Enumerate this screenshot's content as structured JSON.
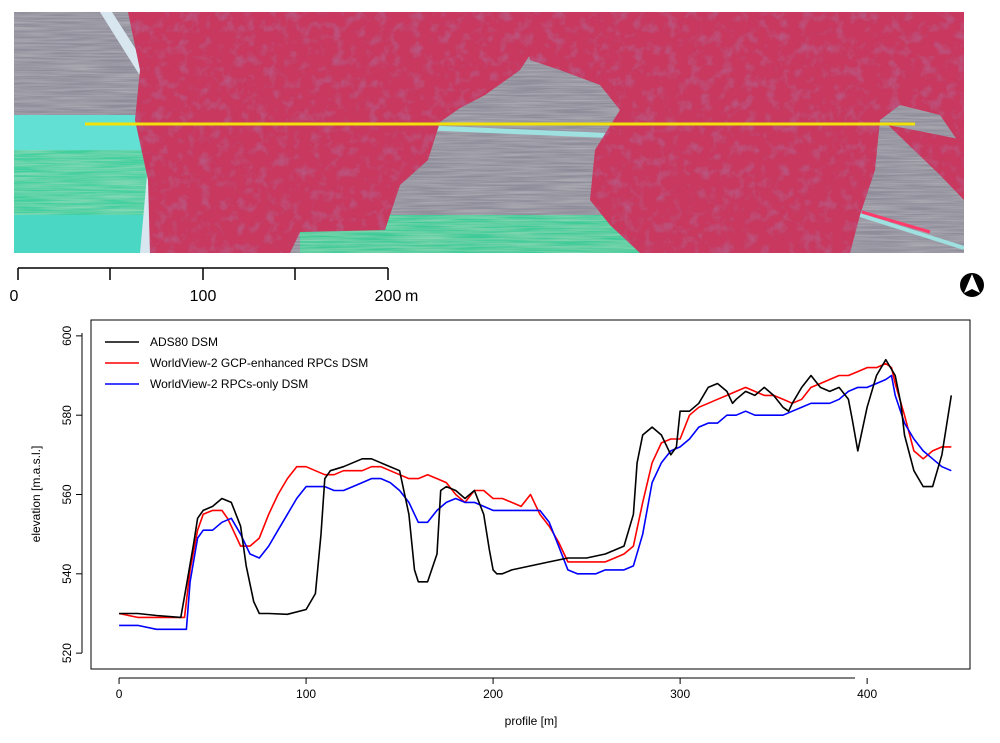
{
  "colors": {
    "forest": "#c8375f",
    "forest_dark": "#7d1836",
    "field_cyan": "#5fe2d6",
    "field_green": "#2ec89a",
    "field_gray": "#9a8c95",
    "profile_line": "#f2e20a",
    "ads80": "#000000",
    "wv2_gcp": "#ff0000",
    "wv2_rpc": "#0000ff"
  },
  "icons": {
    "north_arrow": "north-arrow-icon"
  },
  "scalebar": {
    "labels": [
      "0",
      "100",
      "200"
    ],
    "unit": "m"
  },
  "chart_data": {
    "type": "line",
    "xlabel": "profile [m]",
    "ylabel": "elevation [m.a.s.l.]",
    "xlim": [
      -15,
      455
    ],
    "ylim": [
      516,
      604
    ],
    "xticks": [
      0,
      100,
      200,
      300,
      400
    ],
    "yticks": [
      520,
      540,
      560,
      580,
      600
    ],
    "legend_position": "top-left",
    "series": [
      {
        "name": "ADS80 DSM",
        "color": "#000000",
        "x": [
          0,
          10,
          20,
          33,
          36,
          40,
          42,
          45,
          50,
          55,
          60,
          65,
          68,
          72,
          75,
          80,
          90,
          100,
          105,
          108,
          110,
          113,
          120,
          130,
          135,
          140,
          145,
          150,
          155,
          158,
          160,
          165,
          170,
          172,
          175,
          180,
          185,
          190,
          195,
          198,
          200,
          202,
          205,
          210,
          220,
          230,
          240,
          250,
          260,
          270,
          275,
          277,
          280,
          285,
          290,
          295,
          298,
          300,
          302,
          305,
          310,
          315,
          320,
          325,
          328,
          330,
          335,
          340,
          345,
          350,
          355,
          358,
          360,
          365,
          370,
          375,
          380,
          385,
          390,
          392,
          395,
          400,
          405,
          410,
          415,
          418,
          420,
          425,
          430,
          435,
          440,
          445
        ],
        "y": [
          530,
          530,
          529.5,
          529,
          537,
          548,
          554,
          556,
          557,
          559,
          558,
          552,
          542,
          533,
          530,
          530,
          529.8,
          531,
          535,
          550,
          564,
          566,
          567,
          569,
          569,
          568,
          567,
          566,
          555,
          541,
          538,
          538,
          545,
          561,
          562,
          561,
          559,
          561,
          555,
          546,
          541,
          540,
          540,
          541,
          542,
          543,
          544,
          544,
          545,
          547,
          555,
          568,
          575,
          577,
          575,
          570,
          572,
          581,
          581,
          581,
          583,
          587,
          588,
          586,
          583,
          584,
          586,
          585,
          587,
          585,
          582,
          581,
          583,
          587,
          590,
          587,
          586,
          587,
          584,
          579,
          571,
          582,
          590,
          594,
          590,
          583,
          575,
          566,
          562,
          562,
          570,
          585
        ]
      },
      {
        "name": "WorldView-2 GCP-enhanced RPCs DSM",
        "color": "#ff0000",
        "x": [
          0,
          10,
          20,
          35,
          38,
          42,
          45,
          50,
          55,
          58,
          60,
          65,
          70,
          75,
          80,
          85,
          90,
          95,
          100,
          105,
          110,
          115,
          120,
          125,
          130,
          135,
          140,
          145,
          150,
          155,
          160,
          165,
          170,
          175,
          180,
          185,
          190,
          195,
          200,
          205,
          210,
          215,
          220,
          225,
          230,
          235,
          240,
          245,
          250,
          255,
          260,
          265,
          270,
          275,
          280,
          285,
          290,
          295,
          300,
          305,
          310,
          315,
          320,
          325,
          330,
          335,
          340,
          345,
          350,
          355,
          360,
          365,
          370,
          375,
          380,
          385,
          390,
          395,
          400,
          405,
          410,
          413,
          415,
          420,
          425,
          430,
          435,
          440,
          445
        ],
        "y": [
          530,
          529,
          529,
          529,
          541,
          551,
          555,
          556,
          556,
          554,
          552,
          547,
          547,
          549,
          555,
          560,
          564,
          567,
          567,
          566,
          565,
          565,
          566,
          566,
          566,
          567,
          567,
          566,
          565,
          564,
          564,
          565,
          564,
          563,
          560,
          558,
          561,
          561,
          559,
          559,
          558,
          557,
          560,
          555,
          552,
          548,
          543,
          543,
          543,
          543,
          543,
          544,
          545,
          547,
          558,
          568,
          573,
          574,
          574,
          580,
          582,
          583,
          584,
          585,
          586,
          587,
          586,
          585,
          585,
          584,
          583,
          584,
          587,
          588,
          589,
          590,
          590,
          591,
          592,
          592,
          593,
          592,
          588,
          580,
          571,
          569,
          571,
          572,
          572
        ]
      },
      {
        "name": "WorldView-2 RPCs-only DSM",
        "color": "#0000ff",
        "x": [
          0,
          10,
          20,
          30,
          36,
          38,
          42,
          45,
          50,
          55,
          60,
          65,
          70,
          75,
          80,
          85,
          90,
          95,
          100,
          105,
          110,
          115,
          120,
          125,
          130,
          135,
          140,
          145,
          150,
          155,
          160,
          165,
          170,
          175,
          180,
          185,
          190,
          195,
          200,
          205,
          210,
          215,
          220,
          225,
          230,
          235,
          240,
          245,
          250,
          255,
          260,
          265,
          270,
          275,
          280,
          285,
          290,
          295,
          300,
          305,
          310,
          315,
          320,
          325,
          330,
          335,
          340,
          345,
          350,
          355,
          360,
          365,
          370,
          375,
          380,
          385,
          390,
          395,
          400,
          405,
          410,
          413,
          415,
          420,
          425,
          430,
          435,
          440,
          445
        ],
        "y": [
          527,
          527,
          526,
          526,
          526,
          538,
          549,
          551,
          551,
          553,
          554,
          550,
          545,
          544,
          547,
          551,
          555,
          559,
          562,
          562,
          562,
          561,
          561,
          562,
          563,
          564,
          564,
          563,
          561,
          558,
          553,
          553,
          556,
          558,
          559,
          558,
          558,
          557,
          556,
          556,
          556,
          556,
          556,
          556,
          553,
          547,
          541,
          540,
          540,
          540,
          541,
          541,
          541,
          542,
          550,
          563,
          568,
          571,
          572,
          574,
          577,
          578,
          578,
          580,
          580,
          581,
          580,
          580,
          580,
          580,
          581,
          582,
          583,
          583,
          583,
          584,
          586,
          587,
          587,
          588,
          589,
          590,
          585,
          578,
          574,
          571,
          569,
          567,
          566
        ]
      }
    ]
  }
}
